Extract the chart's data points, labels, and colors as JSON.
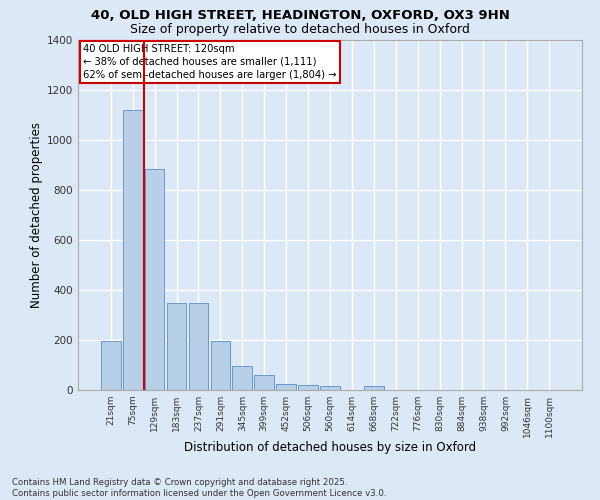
{
  "title_line1": "40, OLD HIGH STREET, HEADINGTON, OXFORD, OX3 9HN",
  "title_line2": "Size of property relative to detached houses in Oxford",
  "xlabel": "Distribution of detached houses by size in Oxford",
  "ylabel": "Number of detached properties",
  "categories": [
    "21sqm",
    "75sqm",
    "129sqm",
    "183sqm",
    "237sqm",
    "291sqm",
    "345sqm",
    "399sqm",
    "452sqm",
    "506sqm",
    "560sqm",
    "614sqm",
    "668sqm",
    "722sqm",
    "776sqm",
    "830sqm",
    "884sqm",
    "938sqm",
    "992sqm",
    "1046sqm",
    "1100sqm"
  ],
  "values": [
    195,
    1120,
    885,
    350,
    350,
    195,
    95,
    60,
    25,
    22,
    18,
    0,
    15,
    0,
    0,
    0,
    0,
    0,
    0,
    0,
    0
  ],
  "bar_color": "#b8cfe8",
  "bar_edge_color": "#6699cc",
  "vline_color": "#cc0000",
  "vline_pos": 1.5,
  "annotation_text": "40 OLD HIGH STREET: 120sqm\n← 38% of detached houses are smaller (1,111)\n62% of semi-detached houses are larger (1,804) →",
  "annotation_box_color": "#cc0000",
  "ylim": [
    0,
    1400
  ],
  "yticks": [
    0,
    200,
    400,
    600,
    800,
    1000,
    1200,
    1400
  ],
  "bg_color": "#dce8f5",
  "plot_bg_color": "#dce8f5",
  "grid_color": "#ffffff",
  "footer_line1": "Contains HM Land Registry data © Crown copyright and database right 2025.",
  "footer_line2": "Contains public sector information licensed under the Open Government Licence v3.0."
}
